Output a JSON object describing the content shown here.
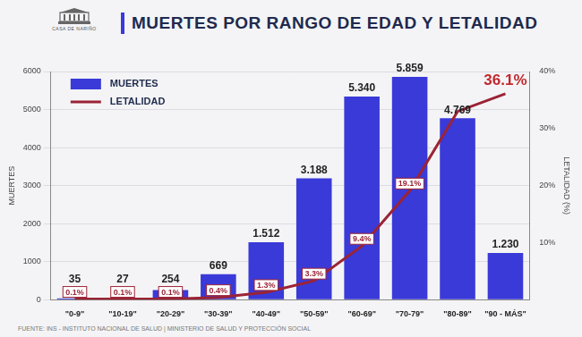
{
  "chart_data": {
    "type": "bar",
    "title": "MUERTES POR RANGO DE EDAD Y LETALIDAD",
    "annotations": [
      "CASA DE NARIÑO",
      "FUENTE: INS - INSTITUTO NACIONAL DE SALUD | MINISTERIO DE SALUD Y PROTECCIÓN SOCIAL"
    ],
    "categories": [
      "\"0-9\"",
      "\"10-19\"",
      "\"20-29\"",
      "\"30-39\"",
      "\"40-49\"",
      "\"50-59\"",
      "\"60-69\"",
      "\"70-79\"",
      "\"80-89\"",
      "\"90 - MÁS\""
    ],
    "series": [
      {
        "name": "MUERTES",
        "type": "bar",
        "color": "#3a3ad8",
        "values": [
          35,
          27,
          254,
          669,
          1512,
          3188,
          5340,
          5859,
          4769,
          1230
        ],
        "value_labels": [
          "35",
          "27",
          "254",
          "669",
          "1.512",
          "3.188",
          "5.340",
          "5.859",
          "4.769",
          "1.230"
        ]
      },
      {
        "name": "LETALIDAD",
        "type": "line",
        "color": "#9b2335",
        "axis": "y2",
        "values": [
          0.1,
          0.1,
          0.1,
          0.4,
          1.3,
          3.3,
          9.4,
          19.1,
          33,
          36.1
        ],
        "value_labels": [
          "0.1%",
          "0.1%",
          "0.1%",
          "0.4%",
          "1.3%",
          "3.3%",
          "9.4%",
          "19.1%",
          null,
          "36.1%"
        ]
      }
    ],
    "y_label": "MUERTES",
    "y2_label": "LETALIDAD (%)",
    "ylim": [
      0,
      6000
    ],
    "yticks": [
      0,
      1000,
      2000,
      3000,
      4000,
      5000,
      6000
    ],
    "y2lim": [
      0,
      40
    ],
    "y2ticks": [
      {
        "value": 10,
        "label": "10%"
      },
      {
        "value": 20,
        "label": "20%"
      },
      {
        "value": 30,
        "label": "30%"
      },
      {
        "value": 40,
        "label": "40%"
      }
    ],
    "grid": true,
    "legend": "upper left",
    "data_labels": true
  }
}
